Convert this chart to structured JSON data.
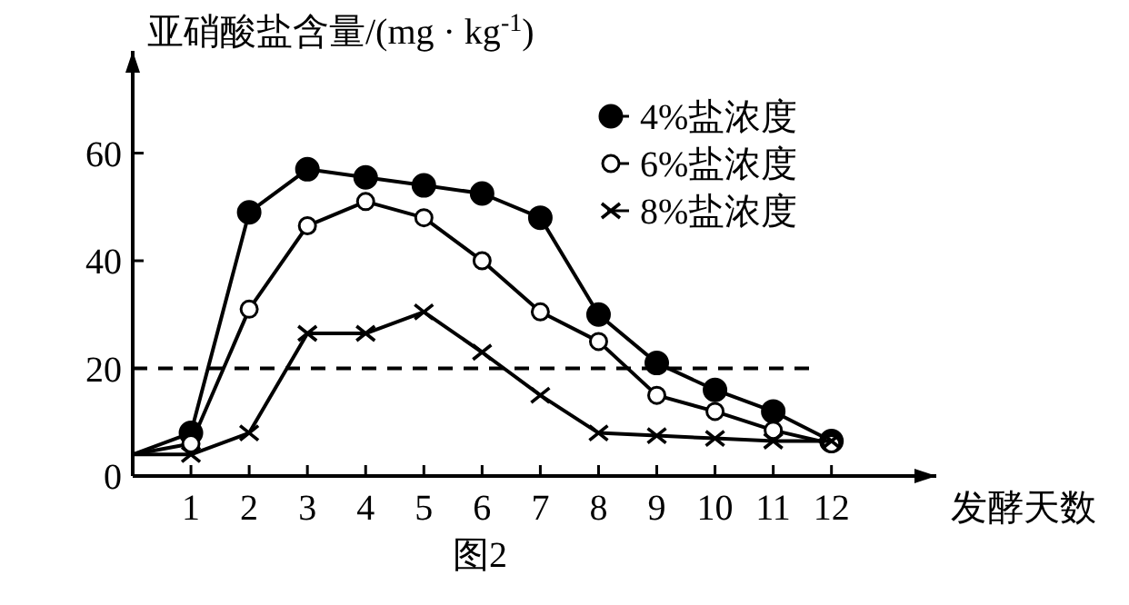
{
  "chart_data": {
    "type": "line",
    "ylabel": "亚硝酸盐含量/(mg · kg$^{-1}$)",
    "xlabel": "发酵天数",
    "annotations": [
      "图2"
    ],
    "x": [
      0,
      1,
      2,
      3,
      4,
      5,
      6,
      7,
      8,
      9,
      10,
      11,
      12
    ],
    "xlim": [
      0,
      13.8
    ],
    "ylim": [
      0,
      79
    ],
    "xticks": [
      1,
      2,
      3,
      4,
      5,
      6,
      7,
      8,
      9,
      10,
      11,
      12
    ],
    "yticks": [
      0,
      20,
      40,
      60
    ],
    "series": [
      {
        "name": "4%盐浓度",
        "color": "#000000",
        "marker": "circle",
        "values": [
          4,
          8,
          49,
          57,
          55.5,
          54,
          52.5,
          48,
          30,
          21,
          16,
          12,
          6.5
        ]
      },
      {
        "name": "6%盐浓度",
        "color": "#000000",
        "marker": "circle-open",
        "values": [
          4,
          6,
          31,
          46.5,
          51,
          48,
          40,
          30.5,
          25,
          15,
          12,
          8.5,
          6
        ]
      },
      {
        "name": "8%盐浓度",
        "color": "#000000",
        "marker": "cross",
        "values": [
          4,
          4,
          8,
          26.5,
          26.5,
          30.5,
          23,
          15,
          8,
          7.5,
          7,
          6.5,
          6.5
        ]
      }
    ],
    "ref_lines": [
      {
        "axis": "y",
        "value": 20,
        "line_style": "dashed"
      }
    ],
    "grid": false,
    "legend": "top right",
    "line_style": "solid"
  }
}
